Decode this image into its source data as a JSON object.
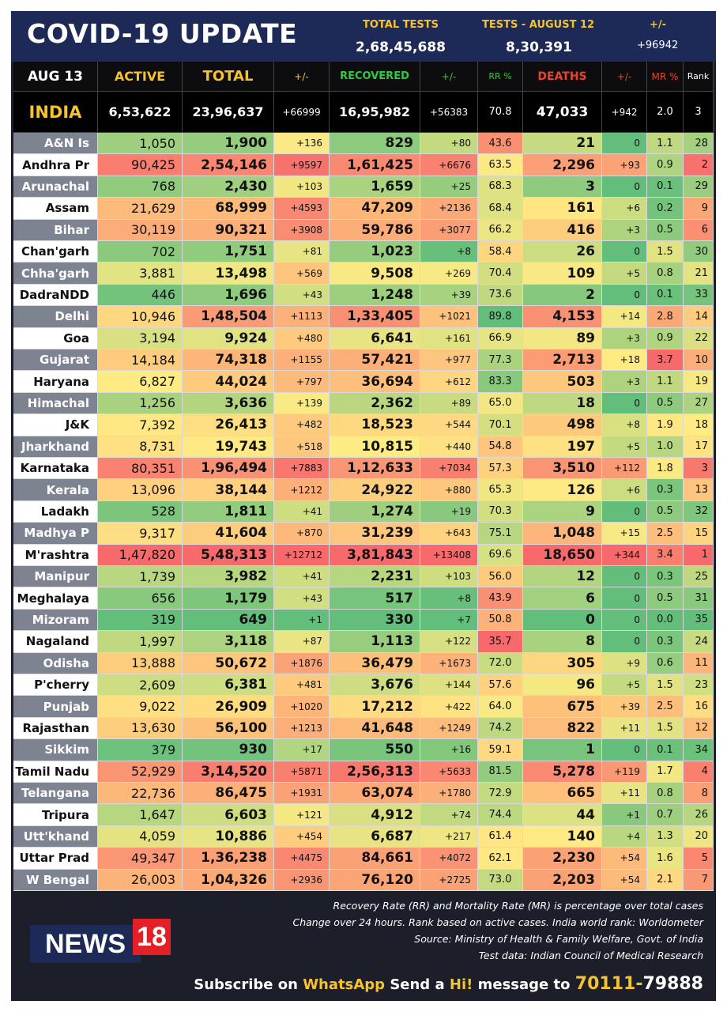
{
  "header": {
    "title": "COVID-19 UPDATE",
    "total_tests_label": "TOTAL TESTS",
    "total_tests_value": "2,68,45,688",
    "tests_day_label": "TESTS - AUGUST 12",
    "tests_day_value": "8,30,391",
    "change_label": "+/-",
    "change_value": "+96942"
  },
  "columns": {
    "date": "AUG 13",
    "active": "ACTIVE",
    "total": "TOTAL",
    "total_change": "+/-",
    "recovered": "RECOVERED",
    "recovered_change": "+/-",
    "rr": "RR %",
    "deaths": "DEATHS",
    "deaths_change": "+/-",
    "mr": "MR %",
    "rank": "Rank"
  },
  "india": {
    "name": "INDIA",
    "active": "6,53,622",
    "total": "23,96,637",
    "total_change": "+66999",
    "recovered": "16,95,982",
    "recovered_change": "+56383",
    "rr": "70.8",
    "deaths": "47,033",
    "deaths_change": "+942",
    "mr": "2.0",
    "rank": "3"
  },
  "states": [
    {
      "name": "A&N Is",
      "active": "1,050",
      "total": "1,900",
      "total_change": "+136",
      "recovered": "829",
      "recovered_change": "+80",
      "rr": "43.6",
      "deaths": "21",
      "deaths_change": "0",
      "mr": "1.1",
      "rank": "28"
    },
    {
      "name": "Andhra Pr",
      "active": "90,425",
      "total": "2,54,146",
      "total_change": "+9597",
      "recovered": "1,61,425",
      "recovered_change": "+6676",
      "rr": "63.5",
      "deaths": "2,296",
      "deaths_change": "+93",
      "mr": "0.9",
      "rank": "2"
    },
    {
      "name": "Arunachal",
      "active": "768",
      "total": "2,430",
      "total_change": "+103",
      "recovered": "1,659",
      "recovered_change": "+25",
      "rr": "68.3",
      "deaths": "3",
      "deaths_change": "0",
      "mr": "0.1",
      "rank": "29"
    },
    {
      "name": "Assam",
      "active": "21,629",
      "total": "68,999",
      "total_change": "+4593",
      "recovered": "47,209",
      "recovered_change": "+2136",
      "rr": "68.4",
      "deaths": "161",
      "deaths_change": "+6",
      "mr": "0.2",
      "rank": "9"
    },
    {
      "name": "Bihar",
      "active": "30,119",
      "total": "90,321",
      "total_change": "+3908",
      "recovered": "59,786",
      "recovered_change": "+3077",
      "rr": "66.2",
      "deaths": "416",
      "deaths_change": "+3",
      "mr": "0.5",
      "rank": "6"
    },
    {
      "name": "Chan'garh",
      "active": "702",
      "total": "1,751",
      "total_change": "+81",
      "recovered": "1,023",
      "recovered_change": "+8",
      "rr": "58.4",
      "deaths": "26",
      "deaths_change": "0",
      "mr": "1.5",
      "rank": "30"
    },
    {
      "name": "Chha'garh",
      "active": "3,881",
      "total": "13,498",
      "total_change": "+569",
      "recovered": "9,508",
      "recovered_change": "+269",
      "rr": "70.4",
      "deaths": "109",
      "deaths_change": "+5",
      "mr": "0.8",
      "rank": "21"
    },
    {
      "name": "DadraNDD",
      "active": "446",
      "total": "1,696",
      "total_change": "+43",
      "recovered": "1,248",
      "recovered_change": "+39",
      "rr": "73.6",
      "deaths": "2",
      "deaths_change": "0",
      "mr": "0.1",
      "rank": "33"
    },
    {
      "name": "Delhi",
      "active": "10,946",
      "total": "1,48,504",
      "total_change": "+1113",
      "recovered": "1,33,405",
      "recovered_change": "+1021",
      "rr": "89.8",
      "deaths": "4,153",
      "deaths_change": "+14",
      "mr": "2.8",
      "rank": "14"
    },
    {
      "name": "Goa",
      "active": "3,194",
      "total": "9,924",
      "total_change": "+480",
      "recovered": "6,641",
      "recovered_change": "+161",
      "rr": "66.9",
      "deaths": "89",
      "deaths_change": "+3",
      "mr": "0.9",
      "rank": "22"
    },
    {
      "name": "Gujarat",
      "active": "14,184",
      "total": "74,318",
      "total_change": "+1155",
      "recovered": "57,421",
      "recovered_change": "+977",
      "rr": "77.3",
      "deaths": "2,713",
      "deaths_change": "+18",
      "mr": "3.7",
      "rank": "10"
    },
    {
      "name": "Haryana",
      "active": "6,827",
      "total": "44,024",
      "total_change": "+797",
      "recovered": "36,694",
      "recovered_change": "+612",
      "rr": "83.3",
      "deaths": "503",
      "deaths_change": "+3",
      "mr": "1.1",
      "rank": "19"
    },
    {
      "name": "Himachal",
      "active": "1,256",
      "total": "3,636",
      "total_change": "+139",
      "recovered": "2,362",
      "recovered_change": "+89",
      "rr": "65.0",
      "deaths": "18",
      "deaths_change": "0",
      "mr": "0.5",
      "rank": "27"
    },
    {
      "name": "J&K",
      "active": "7,392",
      "total": "26,413",
      "total_change": "+482",
      "recovered": "18,523",
      "recovered_change": "+544",
      "rr": "70.1",
      "deaths": "498",
      "deaths_change": "+8",
      "mr": "1.9",
      "rank": "18"
    },
    {
      "name": "Jharkhand",
      "active": "8,731",
      "total": "19,743",
      "total_change": "+518",
      "recovered": "10,815",
      "recovered_change": "+440",
      "rr": "54.8",
      "deaths": "197",
      "deaths_change": "+5",
      "mr": "1.0",
      "rank": "17"
    },
    {
      "name": "Karnataka",
      "active": "80,351",
      "total": "1,96,494",
      "total_change": "+7883",
      "recovered": "1,12,633",
      "recovered_change": "+7034",
      "rr": "57.3",
      "deaths": "3,510",
      "deaths_change": "+112",
      "mr": "1.8",
      "rank": "3"
    },
    {
      "name": "Kerala",
      "active": "13,096",
      "total": "38,144",
      "total_change": "+1212",
      "recovered": "24,922",
      "recovered_change": "+880",
      "rr": "65.3",
      "deaths": "126",
      "deaths_change": "+6",
      "mr": "0.3",
      "rank": "13"
    },
    {
      "name": "Ladakh",
      "active": "528",
      "total": "1,811",
      "total_change": "+41",
      "recovered": "1,274",
      "recovered_change": "+19",
      "rr": "70.3",
      "deaths": "9",
      "deaths_change": "0",
      "mr": "0.5",
      "rank": "32"
    },
    {
      "name": "Madhya P",
      "active": "9,317",
      "total": "41,604",
      "total_change": "+870",
      "recovered": "31,239",
      "recovered_change": "+643",
      "rr": "75.1",
      "deaths": "1,048",
      "deaths_change": "+15",
      "mr": "2.5",
      "rank": "15"
    },
    {
      "name": "M'rashtra",
      "active": "1,47,820",
      "total": "5,48,313",
      "total_change": "+12712",
      "recovered": "3,81,843",
      "recovered_change": "+13408",
      "rr": "69.6",
      "deaths": "18,650",
      "deaths_change": "+344",
      "mr": "3.4",
      "rank": "1"
    },
    {
      "name": "Manipur",
      "active": "1,739",
      "total": "3,982",
      "total_change": "+41",
      "recovered": "2,231",
      "recovered_change": "+103",
      "rr": "56.0",
      "deaths": "12",
      "deaths_change": "0",
      "mr": "0.3",
      "rank": "25"
    },
    {
      "name": "Meghalaya",
      "active": "656",
      "total": "1,179",
      "total_change": "+43",
      "recovered": "517",
      "recovered_change": "+8",
      "rr": "43.9",
      "deaths": "6",
      "deaths_change": "0",
      "mr": "0.5",
      "rank": "31"
    },
    {
      "name": "Mizoram",
      "active": "319",
      "total": "649",
      "total_change": "+1",
      "recovered": "330",
      "recovered_change": "+7",
      "rr": "50.8",
      "deaths": "0",
      "deaths_change": "0",
      "mr": "0.0",
      "rank": "35"
    },
    {
      "name": "Nagaland",
      "active": "1,997",
      "total": "3,118",
      "total_change": "+87",
      "recovered": "1,113",
      "recovered_change": "+122",
      "rr": "35.7",
      "deaths": "8",
      "deaths_change": "0",
      "mr": "0.3",
      "rank": "24"
    },
    {
      "name": "Odisha",
      "active": "13,888",
      "total": "50,672",
      "total_change": "+1876",
      "recovered": "36,479",
      "recovered_change": "+1673",
      "rr": "72.0",
      "deaths": "305",
      "deaths_change": "+9",
      "mr": "0.6",
      "rank": "11"
    },
    {
      "name": "P'cherry",
      "active": "2,609",
      "total": "6,381",
      "total_change": "+481",
      "recovered": "3,676",
      "recovered_change": "+144",
      "rr": "57.6",
      "deaths": "96",
      "deaths_change": "+5",
      "mr": "1.5",
      "rank": "23"
    },
    {
      "name": "Punjab",
      "active": "9,022",
      "total": "26,909",
      "total_change": "+1020",
      "recovered": "17,212",
      "recovered_change": "+422",
      "rr": "64.0",
      "deaths": "675",
      "deaths_change": "+39",
      "mr": "2.5",
      "rank": "16"
    },
    {
      "name": "Rajasthan",
      "active": "13,630",
      "total": "56,100",
      "total_change": "+1213",
      "recovered": "41,648",
      "recovered_change": "+1249",
      "rr": "74.2",
      "deaths": "822",
      "deaths_change": "+11",
      "mr": "1.5",
      "rank": "12"
    },
    {
      "name": "Sikkim",
      "active": "379",
      "total": "930",
      "total_change": "+17",
      "recovered": "550",
      "recovered_change": "+16",
      "rr": "59.1",
      "deaths": "1",
      "deaths_change": "0",
      "mr": "0.1",
      "rank": "34"
    },
    {
      "name": "Tamil Nadu",
      "active": "52,929",
      "total": "3,14,520",
      "total_change": "+5871",
      "recovered": "2,56,313",
      "recovered_change": "+5633",
      "rr": "81.5",
      "deaths": "5,278",
      "deaths_change": "+119",
      "mr": "1.7",
      "rank": "4"
    },
    {
      "name": "Telangana",
      "active": "22,736",
      "total": "86,475",
      "total_change": "+1931",
      "recovered": "63,074",
      "recovered_change": "+1780",
      "rr": "72.9",
      "deaths": "665",
      "deaths_change": "+11",
      "mr": "0.8",
      "rank": "8"
    },
    {
      "name": "Tripura",
      "active": "1,647",
      "total": "6,603",
      "total_change": "+121",
      "recovered": "4,912",
      "recovered_change": "+74",
      "rr": "74.4",
      "deaths": "44",
      "deaths_change": "+1",
      "mr": "0.7",
      "rank": "26"
    },
    {
      "name": "Utt'khand",
      "active": "4,059",
      "total": "10,886",
      "total_change": "+454",
      "recovered": "6,687",
      "recovered_change": "+217",
      "rr": "61.4",
      "deaths": "140",
      "deaths_change": "+4",
      "mr": "1.3",
      "rank": "20"
    },
    {
      "name": "Uttar Prad",
      "active": "49,347",
      "total": "1,36,238",
      "total_change": "+4475",
      "recovered": "84,661",
      "recovered_change": "+4072",
      "rr": "62.1",
      "deaths": "2,230",
      "deaths_change": "+54",
      "mr": "1.6",
      "rank": "5"
    },
    {
      "name": "W Bengal",
      "active": "26,003",
      "total": "1,04,326",
      "total_change": "+2936",
      "recovered": "76,120",
      "recovered_change": "+2725",
      "rr": "73.0",
      "deaths": "2,203",
      "deaths_change": "+54",
      "mr": "2.1",
      "rank": "7"
    }
  ],
  "colors": {
    "header_bg": "#1d2a57",
    "yellow_text": "#f6c32c",
    "green_text": "#2ecc40",
    "red_text": "#e8432e",
    "scale_green": "#63be7b",
    "scale_yellow": "#ffeb84",
    "scale_red": "#f8696b"
  },
  "footer": {
    "note1": "Recovery Rate (RR) and Mortality Rate (MR) is percentage over total cases",
    "note2": "Change over 24 hours. Rank based on active cases. India world rank: Worldometer",
    "note3": "Source: Ministry of Health & Family Welfare, Govt. of India",
    "note4": "Test data: Indian Council of Medical Research",
    "logo_text": "NEWS",
    "logo_num": "18",
    "subscribe_prefix": "Subscribe on",
    "subscribe_app": "WhatsApp",
    "subscribe_mid": "Send a",
    "subscribe_hi": "Hi!",
    "subscribe_suffix": "message to",
    "phone_a": "70111-",
    "phone_b": "79888"
  }
}
